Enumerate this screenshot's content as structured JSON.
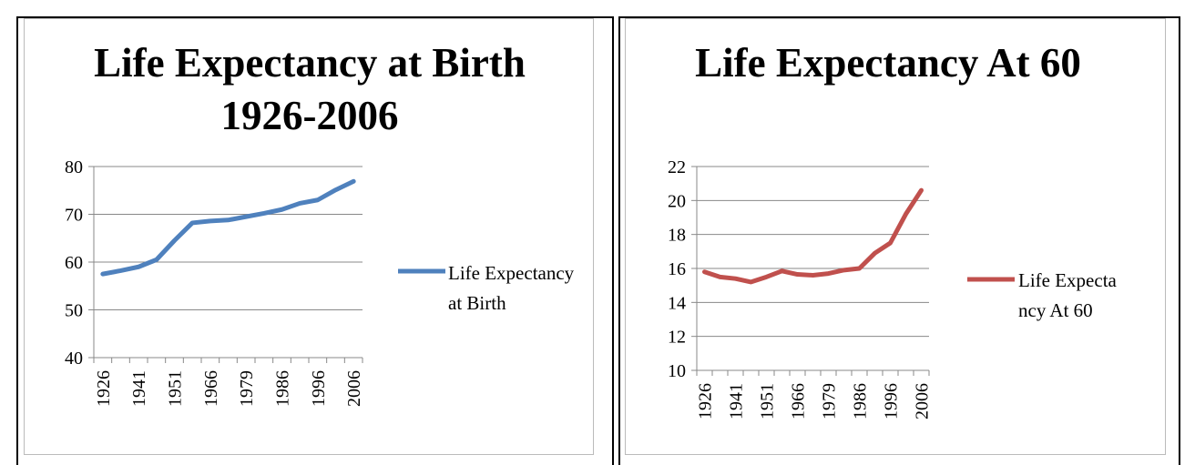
{
  "chart_data": [
    {
      "type": "line",
      "title": "Life Expectancy at Birth 1926-2006",
      "categories": [
        "1926",
        null,
        "1941",
        null,
        "1951",
        null,
        "1966",
        null,
        "1979",
        null,
        "1986",
        null,
        "1996",
        null,
        "2006"
      ],
      "series": [
        {
          "name": "Life Expectancy at Birth",
          "color": "#4f81bd",
          "values": [
            57.5,
            58.2,
            59,
            60.5,
            64.5,
            68.2,
            68.6,
            68.8,
            69.5,
            70.2,
            71,
            72.3,
            73,
            75.1,
            76.9
          ]
        }
      ],
      "ylim": [
        40,
        80
      ],
      "yticks": [
        40,
        50,
        60,
        70,
        80
      ],
      "grid": true,
      "legend": "right"
    },
    {
      "type": "line",
      "title": "Life Expectancy At 60",
      "categories": [
        "1926",
        null,
        "1941",
        null,
        "1951",
        null,
        "1966",
        null,
        "1979",
        null,
        "1986",
        null,
        "1996",
        null,
        "2006"
      ],
      "series": [
        {
          "name": "Life Expectancy At 60",
          "color": "#c0504d",
          "values": [
            15.8,
            15.5,
            15.4,
            15.2,
            15.5,
            15.85,
            15.65,
            15.6,
            15.7,
            15.9,
            16.0,
            16.9,
            17.5,
            19.2,
            20.6
          ]
        }
      ],
      "ylim": [
        10,
        22
      ],
      "yticks": [
        10,
        12,
        14,
        16,
        18,
        20,
        22
      ],
      "grid": true,
      "legend": "right"
    }
  ]
}
